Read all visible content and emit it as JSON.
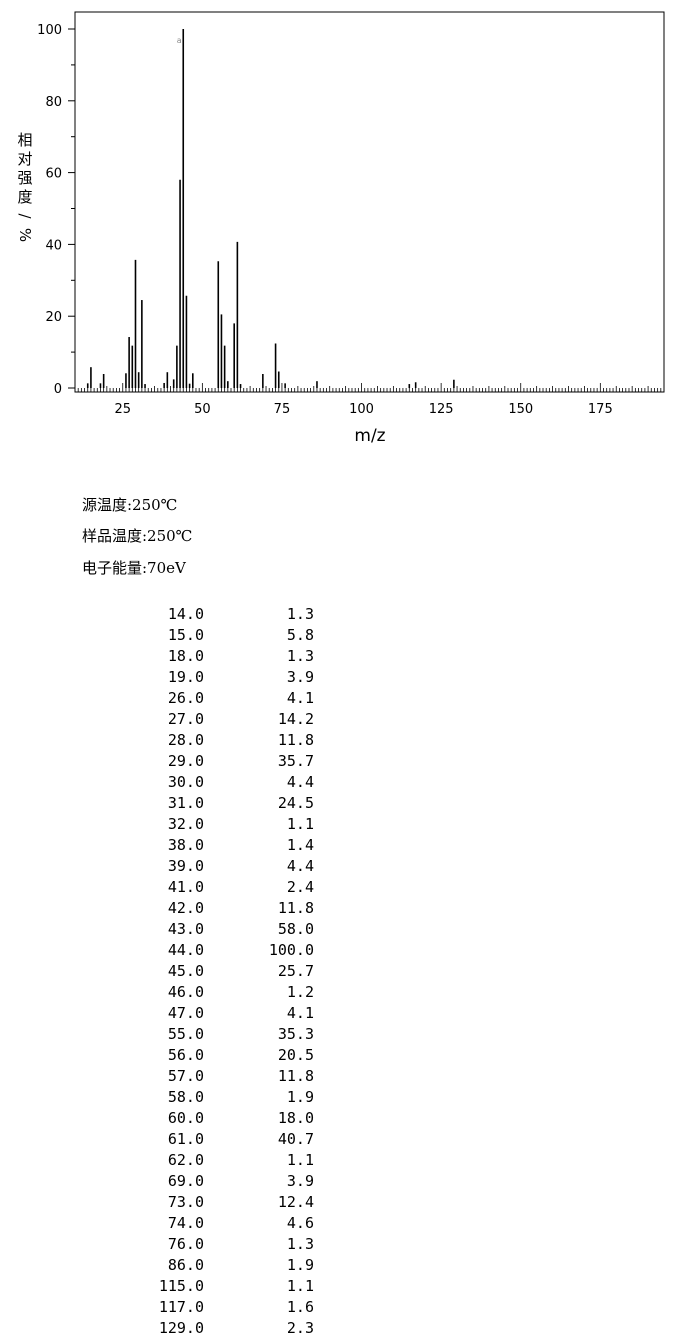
{
  "chart_data": {
    "type": "bar",
    "ylabel": "相对强度/%",
    "xlabel": "m/z",
    "xlim": [
      10,
      195
    ],
    "ylim": [
      0,
      100
    ],
    "y_ticks": [
      "0",
      "20",
      "40",
      "60",
      "80",
      "100"
    ],
    "x_ticks": [
      "25",
      "50",
      "75",
      "100",
      "125",
      "150",
      "175"
    ],
    "peak_marker": "a",
    "x": [
      14,
      15,
      18,
      19,
      26,
      27,
      28,
      29,
      30,
      31,
      32,
      38,
      39,
      41,
      42,
      43,
      44,
      45,
      46,
      47,
      55,
      56,
      57,
      58,
      60,
      61,
      62,
      69,
      73,
      74,
      76,
      86,
      115,
      117,
      129
    ],
    "values": [
      1.3,
      5.8,
      1.3,
      3.9,
      4.1,
      14.2,
      11.8,
      35.7,
      4.4,
      24.5,
      1.1,
      1.4,
      4.4,
      2.4,
      11.8,
      58.0,
      100.0,
      25.7,
      1.2,
      4.1,
      35.3,
      20.5,
      11.8,
      1.9,
      18.0,
      40.7,
      1.1,
      3.9,
      12.4,
      4.6,
      1.3,
      1.9,
      1.1,
      1.6,
      2.3
    ]
  },
  "conditions": [
    "源温度:250℃",
    "样品温度:250℃",
    "电子能量:70eV"
  ],
  "peak_table": [
    [
      "14.0",
      "1.3"
    ],
    [
      "15.0",
      "5.8"
    ],
    [
      "18.0",
      "1.3"
    ],
    [
      "19.0",
      "3.9"
    ],
    [
      "26.0",
      "4.1"
    ],
    [
      "27.0",
      "14.2"
    ],
    [
      "28.0",
      "11.8"
    ],
    [
      "29.0",
      "35.7"
    ],
    [
      "30.0",
      "4.4"
    ],
    [
      "31.0",
      "24.5"
    ],
    [
      "32.0",
      "1.1"
    ],
    [
      "38.0",
      "1.4"
    ],
    [
      "39.0",
      "4.4"
    ],
    [
      "41.0",
      "2.4"
    ],
    [
      "42.0",
      "11.8"
    ],
    [
      "43.0",
      "58.0"
    ],
    [
      "44.0",
      "100.0"
    ],
    [
      "45.0",
      "25.7"
    ],
    [
      "46.0",
      "1.2"
    ],
    [
      "47.0",
      "4.1"
    ],
    [
      "55.0",
      "35.3"
    ],
    [
      "56.0",
      "20.5"
    ],
    [
      "57.0",
      "11.8"
    ],
    [
      "58.0",
      "1.9"
    ],
    [
      "60.0",
      "18.0"
    ],
    [
      "61.0",
      "40.7"
    ],
    [
      "62.0",
      "1.1"
    ],
    [
      "69.0",
      "3.9"
    ],
    [
      "73.0",
      "12.4"
    ],
    [
      "74.0",
      "4.6"
    ],
    [
      "76.0",
      "1.3"
    ],
    [
      "86.0",
      "1.9"
    ],
    [
      "115.0",
      "1.1"
    ],
    [
      "117.0",
      "1.6"
    ],
    [
      "129.0",
      "2.3"
    ]
  ]
}
